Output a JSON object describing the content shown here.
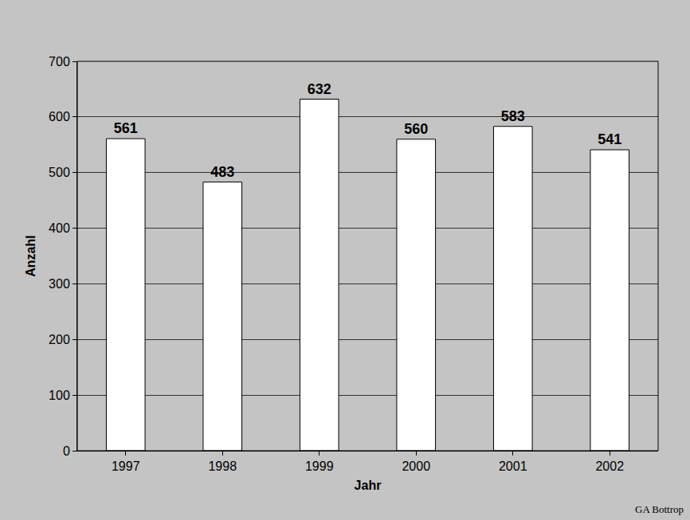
{
  "chart_data": {
    "type": "bar",
    "x_label": "Jahr",
    "y_label": "Anzahl",
    "categories": [
      "1997",
      "1998",
      "1999",
      "2000",
      "2001",
      "2002"
    ],
    "values": [
      561,
      483,
      632,
      560,
      583,
      541
    ],
    "color": "#ffffff",
    "ylim": [
      0,
      700
    ],
    "yticks": [
      0,
      100,
      200,
      300,
      400,
      500,
      600,
      700
    ],
    "grid": true,
    "data_labels": true,
    "annotations": [
      "GA Bottrop"
    ]
  }
}
